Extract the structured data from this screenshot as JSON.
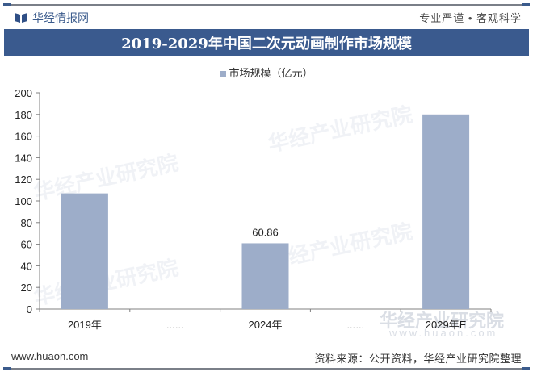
{
  "header": {
    "brand": "华经情报网",
    "slogan": "专业严谨 • 客观科学",
    "title": "2019-2029年中国二次元动画制作市场规模"
  },
  "footer": {
    "website": "www.huaon.com",
    "source": "资料来源：公开资料，华经产业研究院整理"
  },
  "watermark": {
    "text": "华经产业研究院",
    "url": "www.huaon.com"
  },
  "colors": {
    "title_bar": "#3a5a8e",
    "bar": "#9dadc9",
    "axis": "#808080"
  },
  "chart_data": {
    "type": "bar",
    "title": "2019-2029年中国二次元动画制作市场规模",
    "legend": [
      "市场规模（亿元）"
    ],
    "legend_position": "top",
    "categories": [
      "2019年",
      "……",
      "2024年",
      "……",
      "2029年E"
    ],
    "series": [
      {
        "name": "市场规模（亿元）",
        "values": [
          107,
          null,
          60.86,
          null,
          180
        ]
      }
    ],
    "data_labels": {
      "2024年": "60.86"
    },
    "xlabel": "",
    "ylabel": "",
    "ylim": [
      0,
      200
    ],
    "yticks": [
      0,
      20,
      40,
      60,
      80,
      100,
      120,
      140,
      160,
      180,
      200
    ],
    "grid": false
  }
}
